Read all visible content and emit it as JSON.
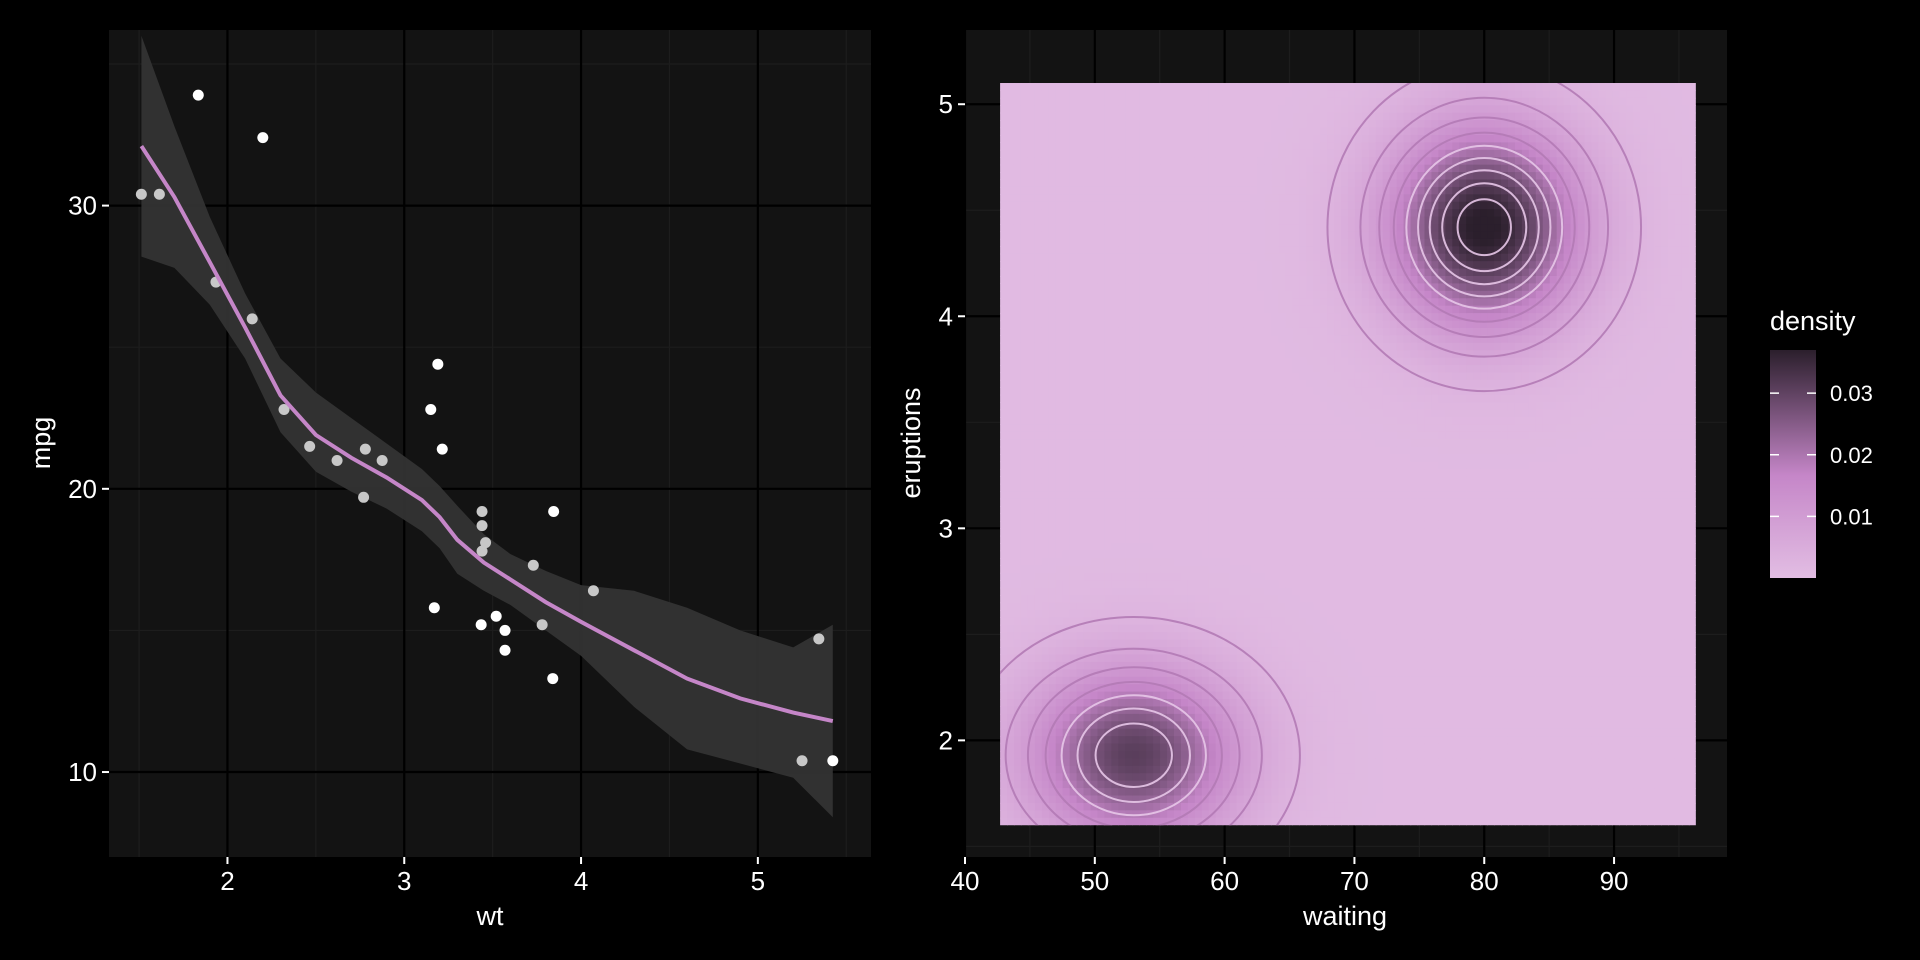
{
  "theme": {
    "page_bg": "#000000",
    "panel_bg": "#131313",
    "grid_major": "#000000",
    "grid_minor": "#1d1d1d",
    "text": "#ffffff",
    "accent": "#c586c8",
    "ribbon": "#333333",
    "point_light": "#ffffff",
    "point_dim": "#c8c8c8",
    "density_low": "#e2bde3",
    "density_mid": "#c586c8",
    "density_high": "#2b1f2c"
  },
  "chart_data": [
    {
      "type": "scatter",
      "xlabel": "wt",
      "ylabel": "mpg",
      "xlim": [
        1.33,
        5.64
      ],
      "ylim": [
        7.0,
        36.2
      ],
      "x_ticks": [
        2,
        3,
        4,
        5
      ],
      "y_ticks": [
        10,
        20,
        30
      ],
      "grid": true,
      "points": [
        {
          "x": 1.513,
          "y": 30.4,
          "dim": true
        },
        {
          "x": 1.615,
          "y": 30.4,
          "dim": true
        },
        {
          "x": 1.835,
          "y": 33.9,
          "dim": false
        },
        {
          "x": 1.935,
          "y": 27.3,
          "dim": true
        },
        {
          "x": 2.14,
          "y": 26.0,
          "dim": true
        },
        {
          "x": 2.2,
          "y": 32.4,
          "dim": false
        },
        {
          "x": 2.32,
          "y": 22.8,
          "dim": true
        },
        {
          "x": 2.465,
          "y": 21.5,
          "dim": true
        },
        {
          "x": 2.62,
          "y": 21.0,
          "dim": true
        },
        {
          "x": 2.77,
          "y": 19.7,
          "dim": true
        },
        {
          "x": 2.78,
          "y": 21.4,
          "dim": true
        },
        {
          "x": 2.875,
          "y": 21.0,
          "dim": true
        },
        {
          "x": 3.15,
          "y": 22.8,
          "dim": false
        },
        {
          "x": 3.17,
          "y": 15.8,
          "dim": false
        },
        {
          "x": 3.19,
          "y": 24.4,
          "dim": false
        },
        {
          "x": 3.215,
          "y": 21.4,
          "dim": false
        },
        {
          "x": 3.435,
          "y": 15.2,
          "dim": false
        },
        {
          "x": 3.44,
          "y": 18.7,
          "dim": true
        },
        {
          "x": 3.44,
          "y": 19.2,
          "dim": true
        },
        {
          "x": 3.44,
          "y": 17.8,
          "dim": true
        },
        {
          "x": 3.46,
          "y": 18.1,
          "dim": true
        },
        {
          "x": 3.52,
          "y": 15.5,
          "dim": false
        },
        {
          "x": 3.57,
          "y": 15.0,
          "dim": false
        },
        {
          "x": 3.57,
          "y": 14.3,
          "dim": false
        },
        {
          "x": 3.73,
          "y": 17.3,
          "dim": true
        },
        {
          "x": 3.78,
          "y": 15.2,
          "dim": true
        },
        {
          "x": 3.84,
          "y": 13.3,
          "dim": false
        },
        {
          "x": 3.845,
          "y": 19.2,
          "dim": false
        },
        {
          "x": 4.07,
          "y": 16.4,
          "dim": true
        },
        {
          "x": 5.25,
          "y": 10.4,
          "dim": true
        },
        {
          "x": 5.345,
          "y": 14.7,
          "dim": true
        },
        {
          "x": 5.424,
          "y": 10.4,
          "dim": false
        }
      ],
      "smooth": {
        "x": [
          1.513,
          1.7,
          1.9,
          2.1,
          2.3,
          2.5,
          2.7,
          2.9,
          3.1,
          3.2,
          3.3,
          3.45,
          3.6,
          3.8,
          4.0,
          4.3,
          4.6,
          4.9,
          5.2,
          5.424
        ],
        "y": [
          32.1,
          30.3,
          28.0,
          25.7,
          23.3,
          21.9,
          21.1,
          20.4,
          19.6,
          19.0,
          18.2,
          17.4,
          16.8,
          16.0,
          15.3,
          14.3,
          13.3,
          12.6,
          12.1,
          11.8
        ],
        "lower": [
          28.2,
          27.8,
          26.5,
          24.6,
          22.0,
          20.6,
          19.9,
          19.3,
          18.5,
          17.9,
          17.0,
          16.4,
          15.9,
          15.0,
          14.1,
          12.3,
          10.8,
          10.3,
          9.8,
          8.4
        ],
        "upper": [
          36.0,
          32.8,
          29.6,
          26.9,
          24.6,
          23.4,
          22.5,
          21.6,
          20.7,
          20.1,
          19.4,
          18.4,
          17.7,
          17.1,
          16.6,
          16.4,
          15.8,
          15.0,
          14.4,
          15.2
        ]
      }
    },
    {
      "type": "heatmap",
      "xlabel": "waiting",
      "ylabel": "eruptions",
      "xlim": [
        40,
        98.7
      ],
      "ylim": [
        1.45,
        5.35
      ],
      "x_ticks": [
        40,
        50,
        60,
        70,
        80,
        90
      ],
      "y_ticks": [
        2,
        3,
        4,
        5
      ],
      "grid": true,
      "data_extent": {
        "x": [
          42.7,
          96.3
        ],
        "y": [
          1.6,
          5.1
        ]
      },
      "density_peaks": [
        {
          "waiting": 80.0,
          "eruptions": 4.42,
          "density": 0.037
        },
        {
          "waiting": 53.0,
          "eruptions": 1.93,
          "density": 0.03
        }
      ],
      "contour_levels": [
        0.002,
        0.006,
        0.01,
        0.014,
        0.018,
        0.022,
        0.026,
        0.03,
        0.034
      ],
      "legend": {
        "title": "density",
        "position": "right",
        "range": [
          0.0,
          0.037
        ],
        "ticks": [
          {
            "value": 0.01,
            "label": "0.01"
          },
          {
            "value": 0.02,
            "label": "0.02"
          },
          {
            "value": 0.03,
            "label": "0.03"
          }
        ]
      }
    }
  ]
}
